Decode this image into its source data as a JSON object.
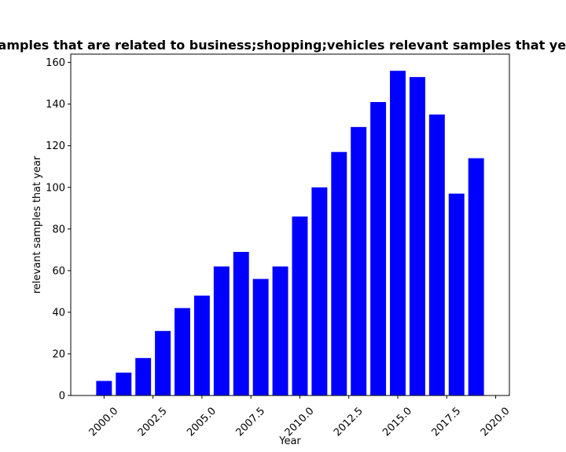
{
  "chart_data": {
    "type": "bar",
    "title": "Number of samples that are related to business;shopping;vehicles relevant samples that year in privacy",
    "xlabel": "Year",
    "ylabel": "relevant samples that year",
    "x": [
      2000,
      2001,
      2002,
      2003,
      2004,
      2005,
      2006,
      2007,
      2008,
      2009,
      2010,
      2011,
      2012,
      2013,
      2014,
      2015,
      2016,
      2017,
      2018,
      2019
    ],
    "values": [
      7,
      11,
      18,
      31,
      42,
      48,
      62,
      69,
      56,
      62,
      86,
      100,
      117,
      129,
      141,
      156,
      153,
      135,
      97,
      114
    ],
    "bar_color": "#0000ff",
    "xlim": [
      1998.3,
      2020.7
    ],
    "ylim": [
      0,
      164
    ],
    "xticks": [
      2000.0,
      2002.5,
      2005.0,
      2007.5,
      2010.0,
      2012.5,
      2015.0,
      2017.5,
      2020.0
    ],
    "xtick_labels": [
      "2000.0",
      "2002.5",
      "2005.0",
      "2007.5",
      "2010.0",
      "2012.5",
      "2015.0",
      "2017.5",
      "2020.0"
    ],
    "yticks": [
      0,
      20,
      40,
      60,
      80,
      100,
      120,
      140,
      160
    ],
    "ytick_labels": [
      "0",
      "20",
      "40",
      "60",
      "80",
      "100",
      "120",
      "140",
      "160"
    ],
    "grid": false,
    "legend": "none"
  }
}
